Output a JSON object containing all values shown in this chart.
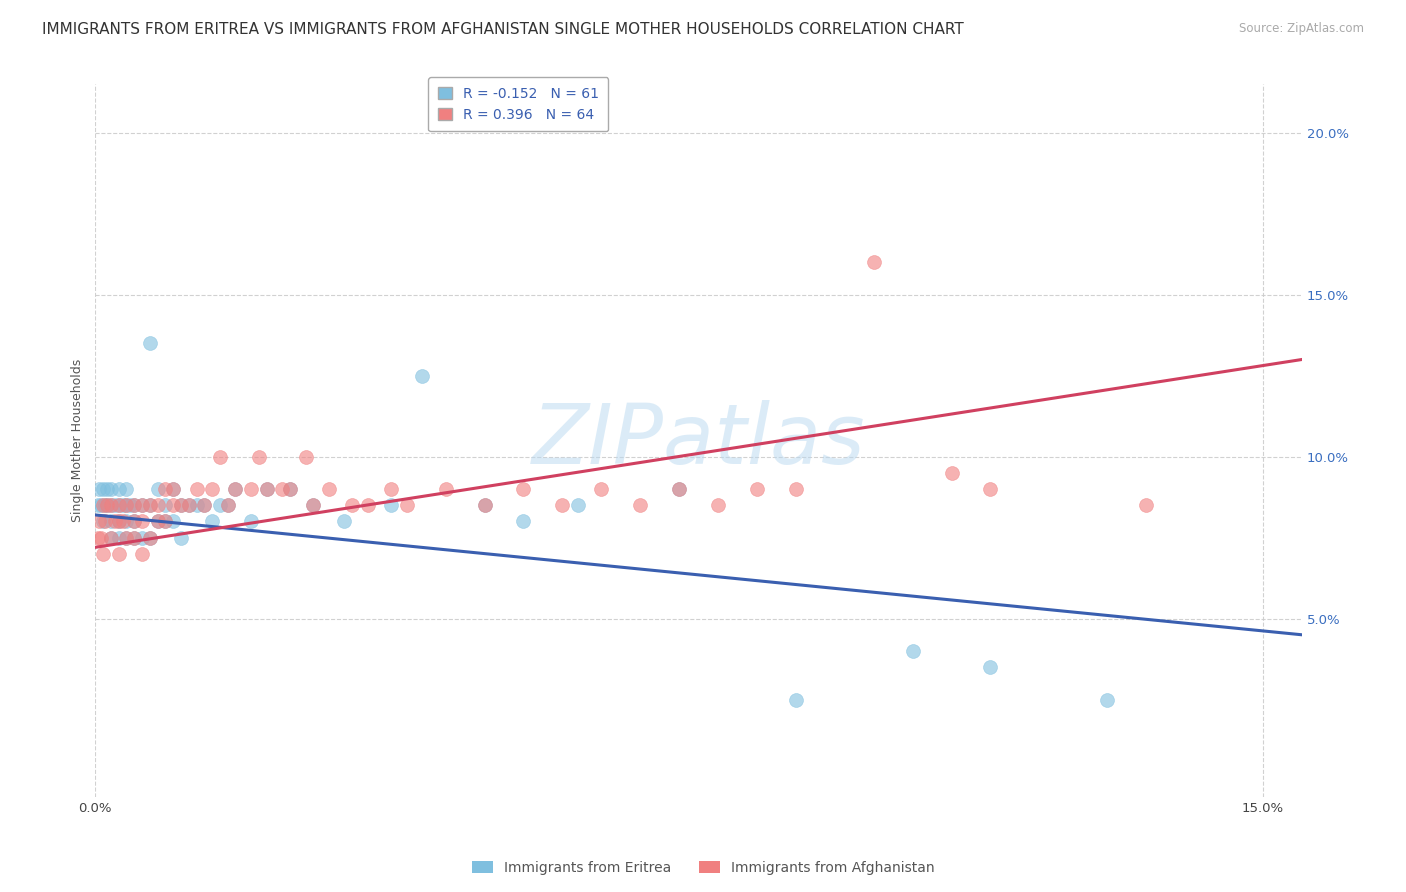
{
  "title": "IMMIGRANTS FROM ERITREA VS IMMIGRANTS FROM AFGHANISTAN SINGLE MOTHER HOUSEHOLDS CORRELATION CHART",
  "source": "Source: ZipAtlas.com",
  "ylabel": "Single Mother Households",
  "watermark": "ZIPatlas",
  "xlim": [
    0.0,
    0.155
  ],
  "ylim": [
    -0.005,
    0.215
  ],
  "xticks": [
    0.0,
    0.15
  ],
  "xtick_labels": [
    "0.0%",
    "15.0%"
  ],
  "yticks": [
    0.05,
    0.1,
    0.15,
    0.2
  ],
  "ytick_labels": [
    "5.0%",
    "10.0%",
    "15.0%",
    "20.0%"
  ],
  "series1_color": "#7fbfdf",
  "series2_color": "#f08080",
  "series1_label": "Immigrants from Eritrea",
  "series2_label": "Immigrants from Afghanistan",
  "series1_R": -0.152,
  "series1_N": 61,
  "series2_R": 0.396,
  "series2_N": 64,
  "series1_x": [
    0.0003,
    0.0005,
    0.0007,
    0.001,
    0.001,
    0.0013,
    0.0015,
    0.0015,
    0.002,
    0.002,
    0.002,
    0.002,
    0.0025,
    0.003,
    0.003,
    0.003,
    0.003,
    0.0035,
    0.004,
    0.004,
    0.004,
    0.004,
    0.0045,
    0.005,
    0.005,
    0.005,
    0.006,
    0.006,
    0.007,
    0.007,
    0.007,
    0.008,
    0.008,
    0.009,
    0.009,
    0.01,
    0.01,
    0.011,
    0.011,
    0.012,
    0.013,
    0.014,
    0.015,
    0.016,
    0.017,
    0.018,
    0.02,
    0.022,
    0.025,
    0.028,
    0.032,
    0.038,
    0.042,
    0.05,
    0.055,
    0.062,
    0.075,
    0.09,
    0.105,
    0.115,
    0.13
  ],
  "series1_y": [
    0.085,
    0.09,
    0.085,
    0.08,
    0.09,
    0.085,
    0.085,
    0.09,
    0.075,
    0.08,
    0.085,
    0.09,
    0.085,
    0.075,
    0.08,
    0.085,
    0.09,
    0.085,
    0.075,
    0.08,
    0.085,
    0.09,
    0.085,
    0.075,
    0.08,
    0.085,
    0.075,
    0.085,
    0.135,
    0.075,
    0.085,
    0.08,
    0.09,
    0.08,
    0.085,
    0.08,
    0.09,
    0.075,
    0.085,
    0.085,
    0.085,
    0.085,
    0.08,
    0.085,
    0.085,
    0.09,
    0.08,
    0.09,
    0.09,
    0.085,
    0.08,
    0.085,
    0.125,
    0.085,
    0.08,
    0.085,
    0.09,
    0.025,
    0.04,
    0.035,
    0.025
  ],
  "series2_x": [
    0.0003,
    0.0005,
    0.0007,
    0.001,
    0.001,
    0.0013,
    0.0015,
    0.002,
    0.002,
    0.0025,
    0.003,
    0.003,
    0.003,
    0.0035,
    0.004,
    0.004,
    0.005,
    0.005,
    0.005,
    0.006,
    0.006,
    0.006,
    0.007,
    0.007,
    0.008,
    0.008,
    0.009,
    0.009,
    0.01,
    0.01,
    0.011,
    0.012,
    0.013,
    0.014,
    0.015,
    0.016,
    0.017,
    0.018,
    0.02,
    0.021,
    0.022,
    0.024,
    0.025,
    0.027,
    0.028,
    0.03,
    0.033,
    0.035,
    0.038,
    0.04,
    0.045,
    0.05,
    0.055,
    0.06,
    0.065,
    0.07,
    0.075,
    0.08,
    0.085,
    0.09,
    0.1,
    0.11,
    0.115,
    0.135
  ],
  "series2_y": [
    0.075,
    0.08,
    0.075,
    0.07,
    0.085,
    0.08,
    0.085,
    0.075,
    0.085,
    0.08,
    0.07,
    0.08,
    0.085,
    0.08,
    0.075,
    0.085,
    0.075,
    0.08,
    0.085,
    0.07,
    0.08,
    0.085,
    0.075,
    0.085,
    0.08,
    0.085,
    0.08,
    0.09,
    0.085,
    0.09,
    0.085,
    0.085,
    0.09,
    0.085,
    0.09,
    0.1,
    0.085,
    0.09,
    0.09,
    0.1,
    0.09,
    0.09,
    0.09,
    0.1,
    0.085,
    0.09,
    0.085,
    0.085,
    0.09,
    0.085,
    0.09,
    0.085,
    0.09,
    0.085,
    0.09,
    0.085,
    0.09,
    0.085,
    0.09,
    0.09,
    0.16,
    0.095,
    0.09,
    0.085
  ],
  "background_color": "#ffffff",
  "grid_color": "#cccccc",
  "title_fontsize": 11,
  "axis_fontsize": 9,
  "tick_fontsize": 9.5,
  "legend_fontsize": 10,
  "watermark_color": "#b8d8f0",
  "watermark_fontsize": 60,
  "trendline1_color": "#3a5fb0",
  "trendline2_color": "#d04060"
}
